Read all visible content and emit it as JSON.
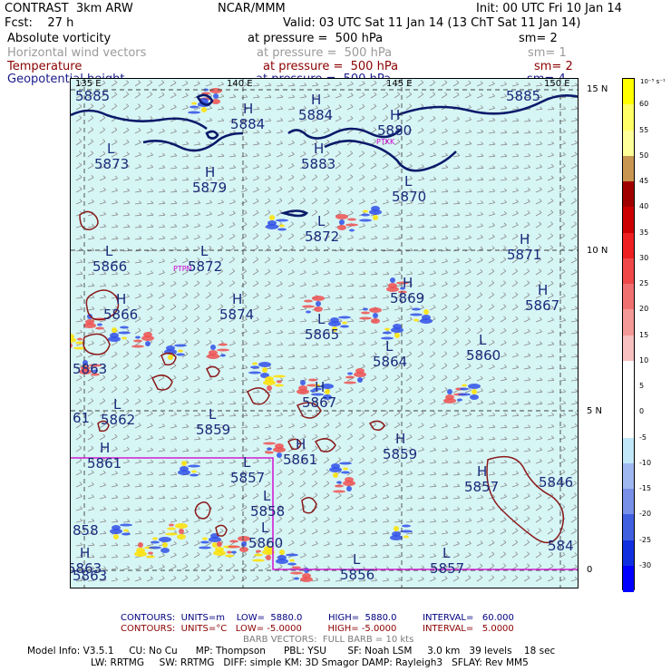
{
  "header": {
    "left1": "CONTRAST  3km ARW",
    "left2": "Fcst:    27 h",
    "center1": "NCAR/MMM",
    "right1": "Init: 00 UTC Fri 10 Jan 14",
    "right2": "Valid: 03 UTC Sat 11 Jan 14 (13 ChT Sat 11 Jan 14)"
  },
  "fields": [
    {
      "name": "Absolute vorticity",
      "pressure": "at pressure =  500 hPa",
      "sm": "sm= 2",
      "color": "#000000"
    },
    {
      "name": "Horizontal wind vectors",
      "pressure": "at pressure =  500 hPa",
      "sm": "sm= 1",
      "color": "#9a9a9a"
    },
    {
      "name": "Temperature",
      "pressure": "at pressure =  500 hPa",
      "sm": "sm= 2",
      "color": "#8b0000"
    },
    {
      "name": "Geopotential height",
      "pressure": "at pressure =  500 hPa",
      "sm": "sm= 4",
      "color": "#1a1a8c"
    }
  ],
  "lon_labels": [
    "135 E",
    "140 E",
    "145 E",
    "150 E"
  ],
  "lat_labels": [
    "15 N",
    "10 N",
    "5 N",
    "0"
  ],
  "stations": [
    "PTKK",
    "PTPN"
  ],
  "height_marks": [
    {
      "t": "H",
      "v": "5884"
    },
    {
      "t": "H",
      "v": "5884"
    },
    {
      "t": "H",
      "v": "5880"
    },
    {
      "t": "L",
      "v": "5873"
    },
    {
      "t": "H",
      "v": "5883"
    },
    {
      "t": "H",
      "v": "5879"
    },
    {
      "t": "L",
      "v": "5870"
    },
    {
      "t": "L",
      "v": "5872"
    },
    {
      "t": "H",
      "v": "5871"
    },
    {
      "t": "L",
      "v": "5866"
    },
    {
      "t": "L",
      "v": "5872"
    },
    {
      "t": "H",
      "v": "5869"
    },
    {
      "t": "H",
      "v": "5867"
    },
    {
      "t": "H",
      "v": "5866"
    },
    {
      "t": "H",
      "v": "5874"
    },
    {
      "t": "L",
      "v": "5865"
    },
    {
      "t": "L",
      "v": "5860"
    },
    {
      "t": "L",
      "v": "5864"
    },
    {
      "t": "H",
      "v": "5867"
    },
    {
      "t": "L",
      "v": "5862"
    },
    {
      "t": "L",
      "v": "5859"
    },
    {
      "t": "H",
      "v": "5861"
    },
    {
      "t": "H",
      "v": "5859"
    },
    {
      "t": "H",
      "v": "5861"
    },
    {
      "t": "L",
      "v": "5857"
    },
    {
      "t": "H",
      "v": "5857"
    },
    {
      "t": "L",
      "v": "5858"
    },
    {
      "t": "L",
      "v": "5860"
    },
    {
      "t": "H",
      "v": "5863"
    },
    {
      "t": "L",
      "v": "5856"
    },
    {
      "t": "L",
      "v": "5857"
    }
  ],
  "edge_values": [
    "5885",
    "5885",
    "5863",
    "61",
    "858",
    "5846",
    "584",
    "5863"
  ],
  "colorbar": {
    "unit": "10⁻⁵ s⁻¹",
    "labels": [
      "60",
      "55",
      "50",
      "45",
      "40",
      "35",
      "30",
      "25",
      "20",
      "15",
      "10",
      "5",
      "0",
      "-5",
      "-10",
      "-15",
      "-20",
      "-25",
      "-30"
    ],
    "colors": [
      "#ffff00",
      "#ffff66",
      "#ffff99",
      "#c89650",
      "#a00000",
      "#cc0000",
      "#ee2020",
      "#f04848",
      "#f07070",
      "#f59898",
      "#f8c0c0",
      "#ffffff",
      "#ffffff",
      "#ffffff",
      "#c0e8f8",
      "#a0b8f0",
      "#7890e8",
      "#4060e0",
      "#1030e0",
      "#0000ff"
    ]
  },
  "footer": {
    "line1": "CONTOURS:  UNITS=m    LOW=  5880.0         HIGH=  5880.0         INTERVAL=   60.000",
    "line2": "CONTOURS:  UNITS=°C   LOW= -5.0000         HIGH= -5.0000         INTERVAL=   5.0000",
    "line3": "BARB VECTORS:  FULL BARB = 10 kts",
    "line4": "Model Info: V3.5.1     CU: No Cu      MP: Thompson      PBL: YSU       SF: Noah LSM     3.0 km   39 levels    18 sec",
    "line5": "LW: RRTMG     SW: RRTMG   DIFF: simple KM: 3D Smagor DAMP: Rayleigh3   SFLAY: Rev MM5",
    "line1_color": "#000080",
    "line2_color": "#8b0000",
    "line3_color": "#7a7a7a"
  }
}
